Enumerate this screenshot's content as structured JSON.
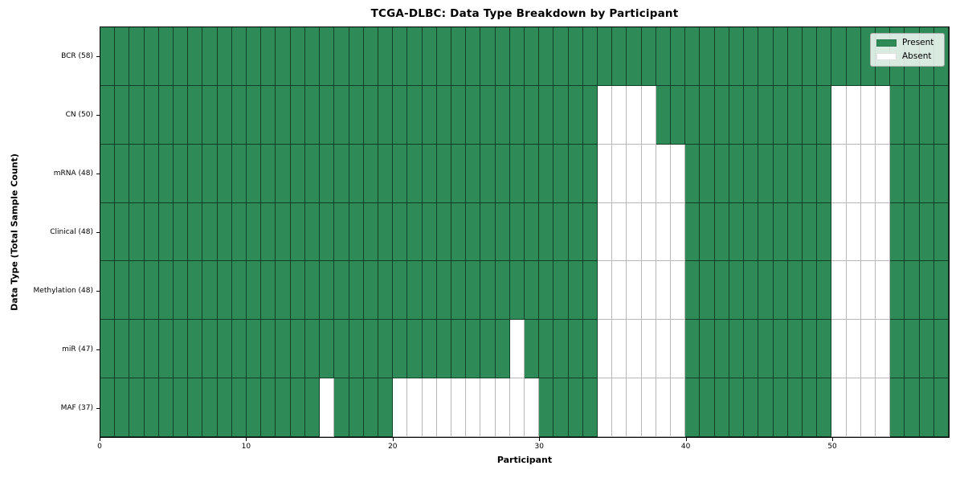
{
  "chart_data": {
    "type": "heatmap",
    "title": "TCGA-DLBC: Data Type Breakdown by Participant",
    "xlabel": "Participant",
    "ylabel": "Data Type (Total Sample Count)",
    "x_ticks": [
      0,
      10,
      20,
      30,
      40,
      50
    ],
    "x_range": [
      0,
      58
    ],
    "n_participants": 58,
    "grid": true,
    "legend_position": "upper right",
    "legend": {
      "present": "Present",
      "absent": "Absent"
    },
    "colors": {
      "present": "#2e8b57",
      "absent": "#ffffff"
    },
    "rows": [
      {
        "label": "BCR (58)",
        "data_type": "BCR",
        "total_samples": 58,
        "absent_participants": []
      },
      {
        "label": "CN (50)",
        "data_type": "CN",
        "total_samples": 50,
        "absent_participants": [
          34,
          35,
          36,
          37,
          50,
          51,
          52,
          53
        ]
      },
      {
        "label": "mRNA (48)",
        "data_type": "mRNA",
        "total_samples": 48,
        "absent_participants": [
          34,
          35,
          36,
          37,
          38,
          39,
          50,
          51,
          52,
          53
        ]
      },
      {
        "label": "Clinical (48)",
        "data_type": "Clinical",
        "total_samples": 48,
        "absent_participants": [
          34,
          35,
          36,
          37,
          38,
          39,
          50,
          51,
          52,
          53
        ]
      },
      {
        "label": "Methylation (48)",
        "data_type": "Methylation",
        "total_samples": 48,
        "absent_participants": [
          34,
          35,
          36,
          37,
          38,
          39,
          50,
          51,
          52,
          53
        ]
      },
      {
        "label": "miR (47)",
        "data_type": "miR",
        "total_samples": 47,
        "absent_participants": [
          28,
          34,
          35,
          36,
          37,
          38,
          39,
          50,
          51,
          52,
          53
        ]
      },
      {
        "label": "MAF (37)",
        "data_type": "MAF",
        "total_samples": 37,
        "absent_participants": [
          15,
          20,
          21,
          22,
          23,
          24,
          25,
          26,
          27,
          28,
          29,
          34,
          35,
          36,
          37,
          38,
          39,
          50,
          51,
          52,
          53
        ]
      }
    ]
  }
}
